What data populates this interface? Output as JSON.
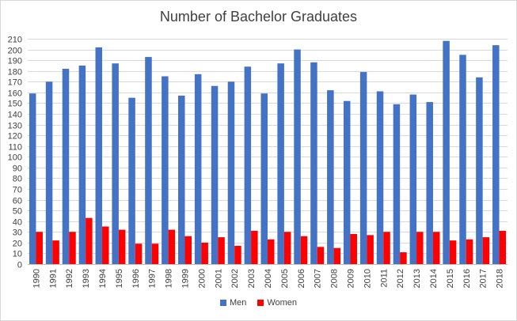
{
  "chart_data": {
    "type": "bar",
    "title": "Number of Bachelor Graduates",
    "xlabel": "",
    "ylabel": "",
    "categories": [
      "1990",
      "1991",
      "1992",
      "1993",
      "1994",
      "1995",
      "1996",
      "1997",
      "1998",
      "1999",
      "2000",
      "2001",
      "2002",
      "2003",
      "2004",
      "2005",
      "2006",
      "2007",
      "2008",
      "2009",
      "2010",
      "2011",
      "2012",
      "2013",
      "2014",
      "2015",
      "2016",
      "2017",
      "2018"
    ],
    "series": [
      {
        "name": "Men",
        "color": "#4472c4",
        "values": [
          159,
          170,
          182,
          185,
          202,
          187,
          155,
          193,
          175,
          157,
          177,
          166,
          170,
          184,
          159,
          187,
          200,
          188,
          162,
          152,
          179,
          161,
          149,
          158,
          151,
          208,
          195,
          174,
          204
        ]
      },
      {
        "name": "Women",
        "color": "#ff0000",
        "values": [
          30,
          22,
          30,
          43,
          35,
          32,
          19,
          19,
          32,
          26,
          20,
          25,
          17,
          31,
          23,
          30,
          26,
          16,
          15,
          28,
          27,
          30,
          11,
          30,
          30,
          22,
          23,
          25,
          31
        ]
      }
    ],
    "ylim": [
      0,
      210
    ],
    "ytick_step": 10,
    "grid": true,
    "legend": "bottom"
  }
}
